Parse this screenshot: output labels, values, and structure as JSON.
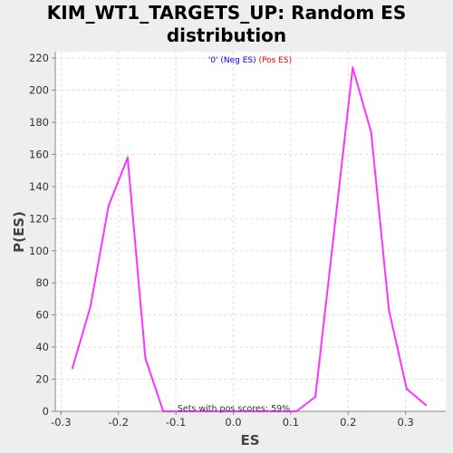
{
  "chart_data": {
    "type": "line",
    "title_line1": "KIM_WT1_TARGETS_UP: Random ES",
    "title_line2": "distribution",
    "xlabel": "ES",
    "ylabel": "P(ES)",
    "xlim": [
      -0.31,
      0.37
    ],
    "ylim": [
      0,
      224
    ],
    "x_ticks": [
      -0.3,
      -0.2,
      -0.1,
      0.0,
      0.1,
      0.2,
      0.3
    ],
    "x_tick_labels": [
      "-0.3",
      "-0.2",
      "-0.1",
      "0.0",
      "0.1",
      "0.2",
      "0.3"
    ],
    "y_ticks": [
      0,
      20,
      40,
      60,
      80,
      100,
      120,
      140,
      160,
      180,
      200,
      220
    ],
    "y_tick_labels": [
      "0",
      "20",
      "40",
      "60",
      "80",
      "100",
      "120",
      "140",
      "160",
      "180",
      "200",
      "220"
    ],
    "grid": true,
    "legend": {
      "placement": "top-center",
      "entries": [
        {
          "text": "'0' (Neg ES)",
          "color": "#0000ff"
        },
        {
          "text": "(Pos ES)",
          "color": "#ff0000"
        }
      ]
    },
    "annotation": "Sets with pos scores: 59%",
    "series": [
      {
        "color": "#ff33ff",
        "x": [
          -0.28,
          -0.249,
          -0.217,
          -0.184,
          -0.153,
          -0.122,
          -0.091,
          -0.059,
          -0.028,
          0.003,
          0.034,
          0.066,
          0.097,
          0.11,
          0.143,
          0.175,
          0.208,
          0.24,
          0.271,
          0.302,
          0.335
        ],
        "y": [
          27,
          65,
          128,
          158,
          33,
          0,
          0,
          0,
          0,
          0,
          0,
          0,
          0,
          0,
          9,
          110,
          214,
          174,
          63,
          14,
          4
        ]
      }
    ]
  }
}
